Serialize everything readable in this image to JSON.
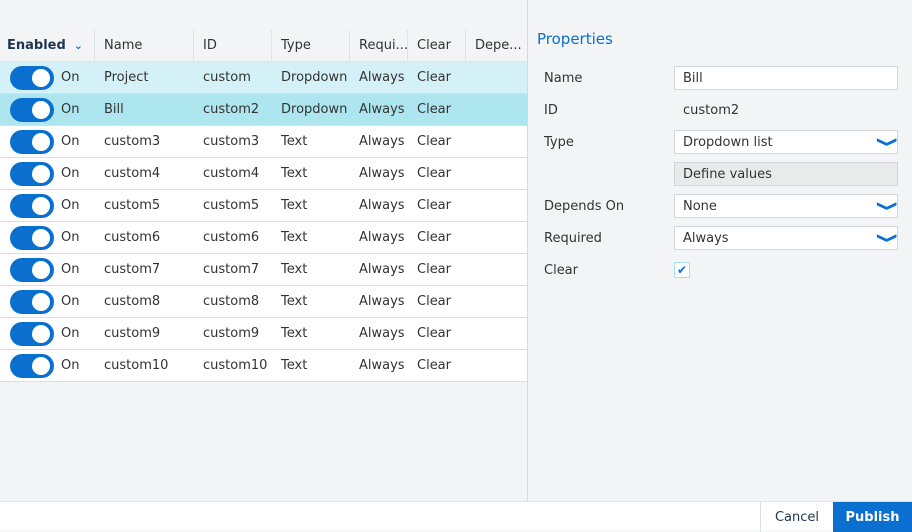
{
  "table": {
    "columns": [
      "Enabled",
      "Name",
      "ID",
      "Type",
      "Requi...",
      "Clear",
      "Depe..."
    ],
    "rows": [
      {
        "enabled": "On",
        "name": "Project",
        "id": "custom",
        "type": "Dropdown",
        "required": "Always",
        "clear": "Clear",
        "depends": ""
      },
      {
        "enabled": "On",
        "name": "Bill",
        "id": "custom2",
        "type": "Dropdown",
        "required": "Always",
        "clear": "Clear",
        "depends": ""
      },
      {
        "enabled": "On",
        "name": "custom3",
        "id": "custom3",
        "type": "Text",
        "required": "Always",
        "clear": "Clear",
        "depends": ""
      },
      {
        "enabled": "On",
        "name": "custom4",
        "id": "custom4",
        "type": "Text",
        "required": "Always",
        "clear": "Clear",
        "depends": ""
      },
      {
        "enabled": "On",
        "name": "custom5",
        "id": "custom5",
        "type": "Text",
        "required": "Always",
        "clear": "Clear",
        "depends": ""
      },
      {
        "enabled": "On",
        "name": "custom6",
        "id": "custom6",
        "type": "Text",
        "required": "Always",
        "clear": "Clear",
        "depends": ""
      },
      {
        "enabled": "On",
        "name": "custom7",
        "id": "custom7",
        "type": "Text",
        "required": "Always",
        "clear": "Clear",
        "depends": ""
      },
      {
        "enabled": "On",
        "name": "custom8",
        "id": "custom8",
        "type": "Text",
        "required": "Always",
        "clear": "Clear",
        "depends": ""
      },
      {
        "enabled": "On",
        "name": "custom9",
        "id": "custom9",
        "type": "Text",
        "required": "Always",
        "clear": "Clear",
        "depends": ""
      },
      {
        "enabled": "On",
        "name": "custom10",
        "id": "custom10",
        "type": "Text",
        "required": "Always",
        "clear": "Clear",
        "depends": ""
      }
    ]
  },
  "properties": {
    "title": "Properties",
    "name_label": "Name",
    "name_value": "Bill",
    "id_label": "ID",
    "id_value": "custom2",
    "type_label": "Type",
    "type_value": "Dropdown list",
    "define_values": "Define values",
    "depends_label": "Depends On",
    "depends_value": "None",
    "required_label": "Required",
    "required_value": "Always",
    "clear_label": "Clear",
    "clear_checked": true
  },
  "footer": {
    "cancel": "Cancel",
    "publish": "Publish"
  },
  "colors": {
    "accent": "#0b6fd0",
    "row_hover": "#d5f1f8",
    "row_selected": "#aee6ef"
  }
}
